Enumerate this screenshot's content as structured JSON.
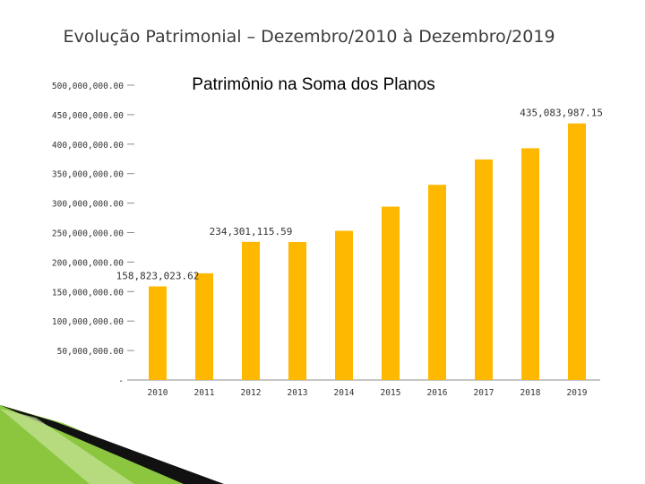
{
  "slide": {
    "title": "Evolução Patrimonial – Dezembro/2010 à Dezembro/2019"
  },
  "chart_data": {
    "type": "bar",
    "title": "Patrimônio na Soma dos Planos",
    "categories": [
      "2010",
      "2011",
      "2012",
      "2013",
      "2014",
      "2015",
      "2016",
      "2017",
      "2018",
      "2019"
    ],
    "values": [
      158823023.62,
      181000000,
      234301115.59,
      234000000,
      253000000,
      294000000,
      331000000,
      374000000,
      393000000,
      435083987.15
    ],
    "data_labels": [
      {
        "index": 0,
        "text": "158,823,023.62"
      },
      {
        "index": 2,
        "text": "234,301,115.59"
      },
      {
        "index": 9,
        "text": "435,083,987.15"
      }
    ],
    "ylim": [
      0,
      500000000
    ],
    "yticks": [
      0,
      50000000,
      100000000,
      150000000,
      200000000,
      250000000,
      300000000,
      350000000,
      400000000,
      450000000,
      500000000
    ],
    "ytick_labels": [
      "-",
      "50,000,000.00",
      "100,000,000.00",
      "150,000,000.00",
      "200,000,000.00",
      "250,000,000.00",
      "300,000,000.00",
      "350,000,000.00",
      "400,000,000.00",
      "450,000,000.00",
      "500,000,000.00"
    ],
    "xlabel": "",
    "ylabel": "",
    "grid": false,
    "colors": {
      "bar": "#FFB800",
      "text": "#333333",
      "axis": "#8c8c8c"
    }
  }
}
